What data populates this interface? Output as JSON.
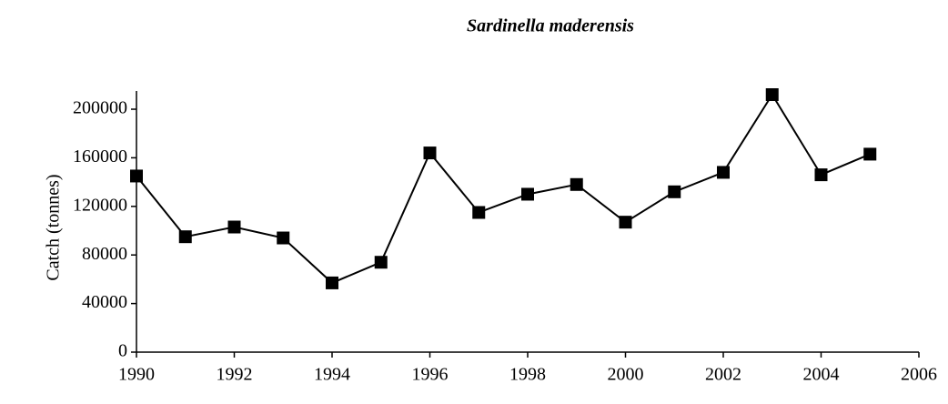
{
  "chart_data": {
    "type": "line",
    "title": "Sardinella maderensis",
    "ylabel": "Catch (tonnes)",
    "x": [
      1990,
      1991,
      1992,
      1993,
      1994,
      1995,
      1996,
      1997,
      1998,
      1999,
      2000,
      2001,
      2002,
      2003,
      2004,
      2005
    ],
    "series": [
      {
        "name": "Sardinella maderensis",
        "color": "#000000",
        "values": [
          145000,
          95000,
          103000,
          94000,
          57000,
          74000,
          164000,
          115000,
          130000,
          138000,
          107000,
          132000,
          148000,
          212000,
          146000,
          163000
        ]
      }
    ],
    "xlim": [
      1990,
      2006
    ],
    "xticks": [
      1990,
      1992,
      1994,
      1996,
      1998,
      2000,
      2002,
      2004,
      2006
    ],
    "ylim": [
      0,
      215000
    ],
    "yticks": [
      0,
      40000,
      80000,
      120000,
      160000,
      200000
    ],
    "grid": false,
    "legend": false
  }
}
